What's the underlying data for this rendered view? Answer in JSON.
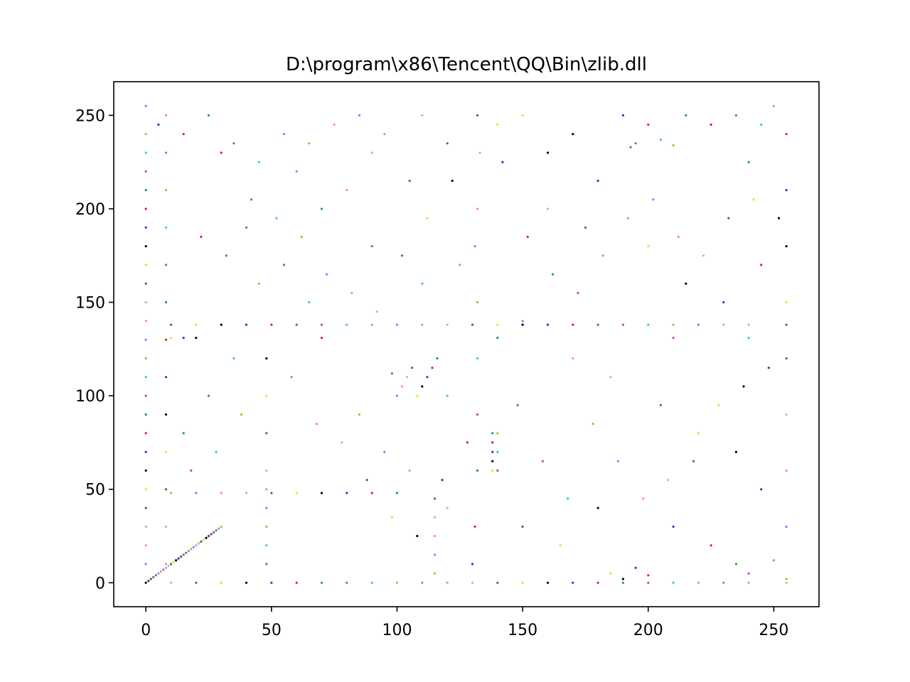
{
  "chart_data": {
    "type": "scatter",
    "title": "D:\\program\\x86\\Tencent\\QQ\\Bin\\zlib.dll",
    "xlabel": "",
    "ylabel": "",
    "xlim": [
      -12.8,
      268
    ],
    "ylim": [
      -12.8,
      268
    ],
    "x_ticks": [
      0,
      50,
      100,
      150,
      200,
      250
    ],
    "y_ticks": [
      0,
      50,
      100,
      150,
      200,
      250
    ],
    "x_tick_labels": [
      "0",
      "50",
      "100",
      "150",
      "200",
      "250"
    ],
    "y_tick_labels": [
      "0",
      "50",
      "100",
      "150",
      "200",
      "250"
    ],
    "grid": false,
    "legend": "none",
    "point_colors": [
      "#000000",
      "#1f3fbf",
      "#d02040",
      "#20a040",
      "#c040c0",
      "#40c0e0",
      "#e0a040",
      "#8080ff",
      "#ff80c0",
      "#80e080",
      "#606060",
      "#e0e040"
    ],
    "series": [
      {
        "points": [
          [
            0,
            0
          ],
          [
            1,
            1
          ],
          [
            2,
            2
          ],
          [
            3,
            3
          ],
          [
            4,
            4
          ],
          [
            5,
            5
          ],
          [
            6,
            6
          ],
          [
            7,
            7
          ],
          [
            8,
            8
          ],
          [
            9,
            9
          ],
          [
            10,
            10
          ],
          [
            11,
            11
          ],
          [
            12,
            12
          ],
          [
            13,
            13
          ],
          [
            14,
            14
          ],
          [
            15,
            15
          ],
          [
            16,
            16
          ],
          [
            17,
            17
          ],
          [
            18,
            18
          ],
          [
            19,
            19
          ],
          [
            20,
            20
          ],
          [
            21,
            21
          ],
          [
            22,
            22
          ],
          [
            23,
            23
          ],
          [
            24,
            24
          ],
          [
            25,
            25
          ],
          [
            26,
            26
          ],
          [
            27,
            27
          ],
          [
            28,
            28
          ],
          [
            29,
            29
          ],
          [
            30,
            30
          ],
          [
            0,
            10
          ],
          [
            0,
            20
          ],
          [
            0,
            30
          ],
          [
            0,
            40
          ],
          [
            0,
            50
          ],
          [
            0,
            60
          ],
          [
            0,
            70
          ],
          [
            0,
            80
          ],
          [
            0,
            90
          ],
          [
            0,
            100
          ],
          [
            0,
            110
          ],
          [
            0,
            120
          ],
          [
            0,
            130
          ],
          [
            0,
            140
          ],
          [
            0,
            150
          ],
          [
            0,
            160
          ],
          [
            0,
            170
          ],
          [
            0,
            180
          ],
          [
            0,
            190
          ],
          [
            0,
            200
          ],
          [
            0,
            210
          ],
          [
            0,
            220
          ],
          [
            0,
            230
          ],
          [
            0,
            240
          ],
          [
            0,
            255
          ],
          [
            8,
            10
          ],
          [
            8,
            30
          ],
          [
            8,
            50
          ],
          [
            8,
            70
          ],
          [
            8,
            90
          ],
          [
            8,
            110
          ],
          [
            8,
            130
          ],
          [
            8,
            150
          ],
          [
            8,
            170
          ],
          [
            8,
            190
          ],
          [
            8,
            210
          ],
          [
            8,
            230
          ],
          [
            8,
            250
          ],
          [
            10,
            0
          ],
          [
            20,
            0
          ],
          [
            30,
            0
          ],
          [
            40,
            0
          ],
          [
            50,
            0
          ],
          [
            60,
            0
          ],
          [
            70,
            0
          ],
          [
            80,
            0
          ],
          [
            90,
            0
          ],
          [
            100,
            0
          ],
          [
            110,
            0
          ],
          [
            120,
            0
          ],
          [
            130,
            0
          ],
          [
            140,
            0
          ],
          [
            150,
            0
          ],
          [
            160,
            0
          ],
          [
            170,
            0
          ],
          [
            180,
            0
          ],
          [
            190,
            0
          ],
          [
            200,
            0
          ],
          [
            210,
            0
          ],
          [
            220,
            0
          ],
          [
            230,
            0
          ],
          [
            240,
            0
          ],
          [
            255,
            0
          ],
          [
            10,
            138
          ],
          [
            20,
            138
          ],
          [
            30,
            138
          ],
          [
            40,
            138
          ],
          [
            50,
            138
          ],
          [
            60,
            138
          ],
          [
            70,
            138
          ],
          [
            80,
            138
          ],
          [
            90,
            138
          ],
          [
            100,
            138
          ],
          [
            110,
            138
          ],
          [
            120,
            138
          ],
          [
            130,
            138
          ],
          [
            140,
            138
          ],
          [
            150,
            138
          ],
          [
            160,
            138
          ],
          [
            170,
            138
          ],
          [
            180,
            138
          ],
          [
            190,
            138
          ],
          [
            200,
            138
          ],
          [
            210,
            138
          ],
          [
            220,
            138
          ],
          [
            230,
            138
          ],
          [
            240,
            138
          ],
          [
            255,
            138
          ],
          [
            10,
            131
          ],
          [
            20,
            131
          ],
          [
            15,
            131
          ],
          [
            70,
            131
          ],
          [
            140,
            131
          ],
          [
            210,
            131
          ],
          [
            240,
            131
          ],
          [
            10,
            48
          ],
          [
            20,
            48
          ],
          [
            30,
            48
          ],
          [
            40,
            48
          ],
          [
            50,
            48
          ],
          [
            60,
            48
          ],
          [
            70,
            48
          ],
          [
            80,
            48
          ],
          [
            90,
            48
          ],
          [
            100,
            48
          ],
          [
            48,
            10
          ],
          [
            48,
            20
          ],
          [
            48,
            30
          ],
          [
            48,
            40
          ],
          [
            48,
            50
          ],
          [
            48,
            60
          ],
          [
            48,
            80
          ],
          [
            48,
            100
          ],
          [
            48,
            120
          ],
          [
            130,
            10
          ],
          [
            131,
            30
          ],
          [
            132,
            60
          ],
          [
            132,
            90
          ],
          [
            132,
            120
          ],
          [
            132,
            150
          ],
          [
            131,
            180
          ],
          [
            132,
            200
          ],
          [
            133,
            230
          ],
          [
            132,
            250
          ],
          [
            138,
            60
          ],
          [
            138,
            65
          ],
          [
            138,
            70
          ],
          [
            138,
            75
          ],
          [
            138,
            80
          ],
          [
            140,
            60
          ],
          [
            140,
            70
          ],
          [
            140,
            80
          ],
          [
            100,
            100
          ],
          [
            102,
            105
          ],
          [
            104,
            110
          ],
          [
            106,
            115
          ],
          [
            108,
            100
          ],
          [
            110,
            105
          ],
          [
            112,
            110
          ],
          [
            114,
            115
          ],
          [
            116,
            120
          ],
          [
            98,
            112
          ],
          [
            120,
            100
          ],
          [
            115,
            5
          ],
          [
            115,
            15
          ],
          [
            115,
            25
          ],
          [
            115,
            35
          ],
          [
            115,
            45
          ],
          [
            185,
            5
          ],
          [
            190,
            2
          ],
          [
            195,
            8
          ],
          [
            200,
            4
          ],
          [
            235,
            10
          ],
          [
            240,
            5
          ],
          [
            250,
            12
          ],
          [
            255,
            2
          ],
          [
            255,
            30
          ],
          [
            255,
            60
          ],
          [
            255,
            90
          ],
          [
            255,
            120
          ],
          [
            255,
            150
          ],
          [
            255,
            180
          ],
          [
            255,
            210
          ],
          [
            255,
            240
          ],
          [
            193,
            233
          ],
          [
            195,
            235
          ],
          [
            205,
            237
          ],
          [
            210,
            234
          ],
          [
            60,
            220
          ],
          [
            80,
            210
          ],
          [
            160,
            200
          ],
          [
            175,
            190
          ],
          [
            200,
            180
          ],
          [
            215,
            160
          ],
          [
            230,
            150
          ],
          [
            245,
            170
          ],
          [
            70,
            200
          ],
          [
            90,
            180
          ],
          [
            110,
            160
          ],
          [
            125,
            170
          ],
          [
            150,
            140
          ],
          [
            170,
            120
          ],
          [
            185,
            110
          ],
          [
            205,
            95
          ],
          [
            220,
            80
          ],
          [
            235,
            70
          ],
          [
            245,
            50
          ],
          [
            30,
            230
          ],
          [
            40,
            190
          ],
          [
            55,
            170
          ],
          [
            65,
            150
          ],
          [
            85,
            90
          ],
          [
            95,
            70
          ],
          [
            105,
            60
          ],
          [
            120,
            40
          ],
          [
            150,
            30
          ],
          [
            165,
            20
          ],
          [
            180,
            40
          ],
          [
            210,
            30
          ],
          [
            225,
            20
          ],
          [
            15,
            80
          ],
          [
            25,
            100
          ],
          [
            35,
            120
          ],
          [
            45,
            160
          ],
          [
            55,
            240
          ],
          [
            75,
            245
          ],
          [
            90,
            230
          ],
          [
            105,
            215
          ],
          [
            140,
            245
          ],
          [
            160,
            230
          ],
          [
            180,
            215
          ],
          [
            225,
            245
          ],
          [
            240,
            225
          ],
          [
            18,
            60
          ],
          [
            28,
            70
          ],
          [
            38,
            90
          ],
          [
            58,
            110
          ],
          [
            68,
            85
          ],
          [
            78,
            75
          ],
          [
            88,
            55
          ],
          [
            98,
            35
          ],
          [
            108,
            25
          ],
          [
            118,
            55
          ],
          [
            128,
            75
          ],
          [
            148,
            95
          ],
          [
            158,
            65
          ],
          [
            168,
            45
          ],
          [
            178,
            85
          ],
          [
            188,
            65
          ],
          [
            198,
            45
          ],
          [
            208,
            55
          ],
          [
            218,
            65
          ],
          [
            228,
            95
          ],
          [
            238,
            105
          ],
          [
            248,
            115
          ],
          [
            22,
            185
          ],
          [
            32,
            175
          ],
          [
            42,
            205
          ],
          [
            52,
            195
          ],
          [
            62,
            185
          ],
          [
            72,
            165
          ],
          [
            82,
            155
          ],
          [
            92,
            145
          ],
          [
            102,
            175
          ],
          [
            112,
            195
          ],
          [
            122,
            215
          ],
          [
            142,
            225
          ],
          [
            152,
            185
          ],
          [
            162,
            165
          ],
          [
            172,
            155
          ],
          [
            182,
            175
          ],
          [
            192,
            195
          ],
          [
            202,
            205
          ],
          [
            212,
            185
          ],
          [
            222,
            175
          ],
          [
            232,
            195
          ],
          [
            242,
            205
          ],
          [
            252,
            195
          ],
          [
            5,
            245
          ],
          [
            15,
            240
          ],
          [
            25,
            250
          ],
          [
            35,
            235
          ],
          [
            45,
            225
          ],
          [
            65,
            235
          ],
          [
            85,
            250
          ],
          [
            95,
            240
          ],
          [
            110,
            250
          ],
          [
            120,
            235
          ],
          [
            150,
            250
          ],
          [
            170,
            240
          ],
          [
            190,
            250
          ],
          [
            200,
            245
          ],
          [
            215,
            250
          ],
          [
            235,
            250
          ],
          [
            245,
            245
          ],
          [
            250,
            255
          ]
        ]
      }
    ]
  }
}
